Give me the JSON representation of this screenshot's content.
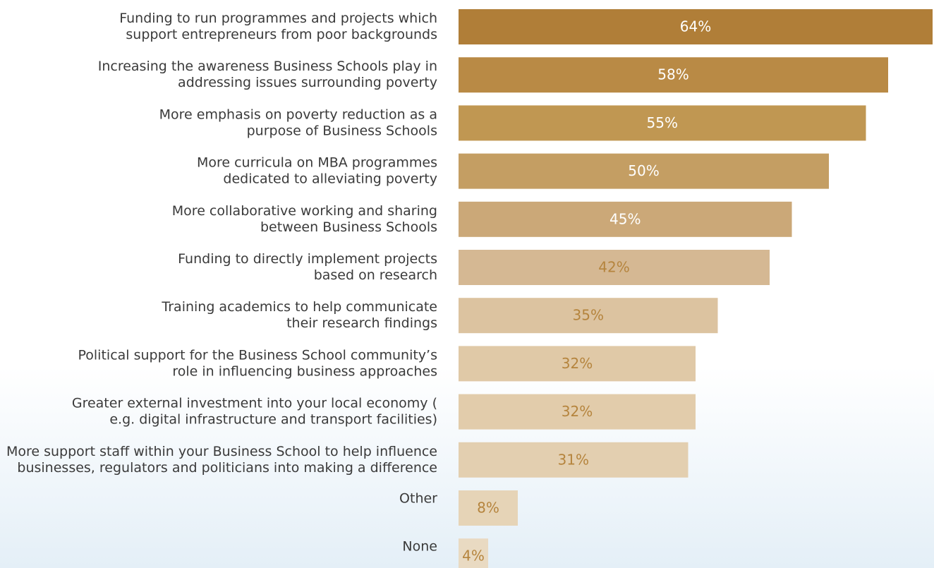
{
  "chart_data": {
    "type": "barh",
    "categories": [
      [
        "Funding to run programmes and projects which",
        "support entrepreneurs from poor backgrounds"
      ],
      [
        "Increasing the awareness Business Schools play in",
        "addressing issues surrounding poverty"
      ],
      [
        "More emphasis on poverty reduction as a",
        "purpose of Business Schools"
      ],
      [
        "More curricula on MBA programmes",
        "dedicated to alleviating poverty"
      ],
      [
        "More collaborative working and sharing",
        "between Business Schools"
      ],
      [
        "Funding to directly implement projects",
        "based on research"
      ],
      [
        "Training academics to help communicate",
        "their research findings"
      ],
      [
        "Political support for the Business School community’s",
        "role in influencing business approaches"
      ],
      [
        "Greater external investment into your local economy (",
        "e.g. digital infrastructure and transport facilities)"
      ],
      [
        "More support staff within your Business School to help influence",
        "businesses, regulators and politicians into making a difference"
      ],
      [
        "Other"
      ],
      [
        "None"
      ]
    ],
    "values": [
      64,
      58,
      55,
      50,
      45,
      42,
      35,
      32,
      32,
      31,
      8,
      4
    ],
    "value_labels": [
      "64%",
      "58%",
      "55%",
      "50%",
      "45%",
      "42%",
      "35%",
      "32%",
      "32%",
      "31%",
      "8%",
      "4%"
    ],
    "colors": [
      "#b07e38",
      "#b98a45",
      "#c09752",
      "#c49e63",
      "#cba878",
      "#d5b893",
      "#dcc3a0",
      "#e0c9a7",
      "#e2ccab",
      "#e3cfb0",
      "#e6d4b7",
      "#e9dac2"
    ],
    "value_label_colors": [
      "#ffffff",
      "#ffffff",
      "#ffffff",
      "#ffffff",
      "#ffffff",
      "#b5843d",
      "#b5843d",
      "#b5843d",
      "#b5843d",
      "#b5843d",
      "#b5843d",
      "#b5843d"
    ]
  }
}
